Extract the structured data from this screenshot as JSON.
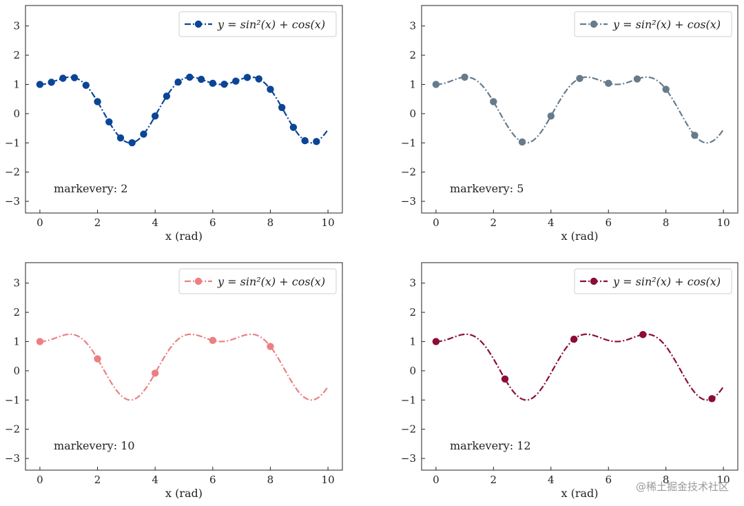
{
  "figure": {
    "watermark": "@稀土掘金技术社区"
  },
  "chart_data": [
    {
      "type": "line",
      "panel": "top-left",
      "x_range": [
        0,
        10
      ],
      "ylim": [
        -3.4,
        3.7
      ],
      "xticks": [
        0,
        2,
        4,
        6,
        8,
        10
      ],
      "yticks": [
        -3,
        -2,
        -1,
        0,
        1,
        2,
        3
      ],
      "xlabel": "x (rad)",
      "legend": "y = sin²(x) + cos(x)",
      "legend_position": "top-right",
      "annotation": "markevery: 2",
      "color": "#0b4596",
      "linestyle": "dash-dot",
      "marker": "circle",
      "markevery": 2
    },
    {
      "type": "line",
      "panel": "top-right",
      "x_range": [
        0,
        10
      ],
      "ylim": [
        -3.4,
        3.7
      ],
      "xticks": [
        0,
        2,
        4,
        6,
        8,
        10
      ],
      "yticks": [
        -3,
        -2,
        -1,
        0,
        1,
        2,
        3
      ],
      "xlabel": "x (rad)",
      "legend": "y = sin²(x) + cos(x)",
      "legend_position": "top-right",
      "annotation": "markevery: 5",
      "color": "#667b8c",
      "linestyle": "dash-dot",
      "marker": "circle",
      "markevery": 5
    },
    {
      "type": "line",
      "panel": "bottom-left",
      "x_range": [
        0,
        10
      ],
      "ylim": [
        -3.4,
        3.7
      ],
      "xticks": [
        0,
        2,
        4,
        6,
        8,
        10
      ],
      "yticks": [
        -3,
        -2,
        -1,
        0,
        1,
        2,
        3
      ],
      "xlabel": "x (rad)",
      "legend": "y = sin²(x) + cos(x)",
      "legend_position": "top-right",
      "annotation": "markevery: 10",
      "color": "#ec7f82",
      "linestyle": "dash-dot",
      "marker": "circle",
      "markevery": 10
    },
    {
      "type": "line",
      "panel": "bottom-right",
      "x_range": [
        0,
        10
      ],
      "ylim": [
        -3.4,
        3.7
      ],
      "xticks": [
        0,
        2,
        4,
        6,
        8,
        10
      ],
      "yticks": [
        -3,
        -2,
        -1,
        0,
        1,
        2,
        3
      ],
      "xlabel": "x (rad)",
      "legend": "y = sin²(x) + cos(x)",
      "legend_position": "top-right",
      "annotation": "markevery: 12",
      "color": "#8a0d36",
      "linestyle": "dash-dot",
      "marker": "circle",
      "markevery": 12
    }
  ]
}
